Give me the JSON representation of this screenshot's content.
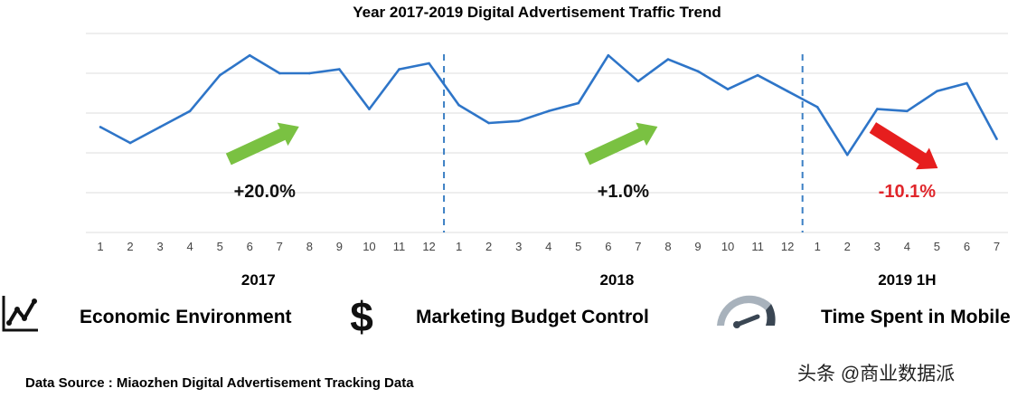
{
  "chart_data": {
    "type": "line",
    "title": "Year 2017-2019  Digital Advertisement Traffic Trend",
    "xlabel": "",
    "ylabel": "",
    "ylim": [
      0,
      100
    ],
    "grid": true,
    "line_color": "#2e75c8",
    "periods": [
      {
        "label": "2017",
        "months": [
          "1",
          "2",
          "3",
          "4",
          "5",
          "6",
          "7",
          "8",
          "9",
          "10",
          "11",
          "12"
        ],
        "values": [
          53,
          45,
          53,
          61,
          79,
          89,
          80,
          80,
          82,
          62,
          82,
          85
        ],
        "change": "+20.0%",
        "change_color": "#111111",
        "trend": "up"
      },
      {
        "label": "2018",
        "months": [
          "1",
          "2",
          "3",
          "4",
          "5",
          "6",
          "7",
          "8",
          "9",
          "10",
          "11",
          "12"
        ],
        "values": [
          64,
          55,
          56,
          61,
          65,
          89,
          76,
          87,
          81,
          72,
          79,
          71
        ],
        "change": "+1.0%",
        "change_color": "#111111",
        "trend": "up"
      },
      {
        "label": "2019 1H",
        "months": [
          "1",
          "2",
          "3",
          "4",
          "5",
          "6",
          "7"
        ],
        "values": [
          63,
          39,
          62,
          61,
          71,
          75,
          47
        ],
        "change": "-10.1%",
        "change_color": "#e0262b",
        "trend": "down"
      }
    ],
    "arrow_colors": {
      "up": "#7ac142",
      "down": "#e61e1e"
    }
  },
  "factors": [
    {
      "icon": "line-chart-icon",
      "label": "Economic Environment"
    },
    {
      "icon": "dollar-icon",
      "label": "Marketing Budget Control"
    },
    {
      "icon": "gauge-icon",
      "label": "Time Spent in Mobile"
    }
  ],
  "source": "Data Source : Miaozhen  Digital  Advertisement  Tracking Data",
  "watermark": "头条 @商业数据派"
}
